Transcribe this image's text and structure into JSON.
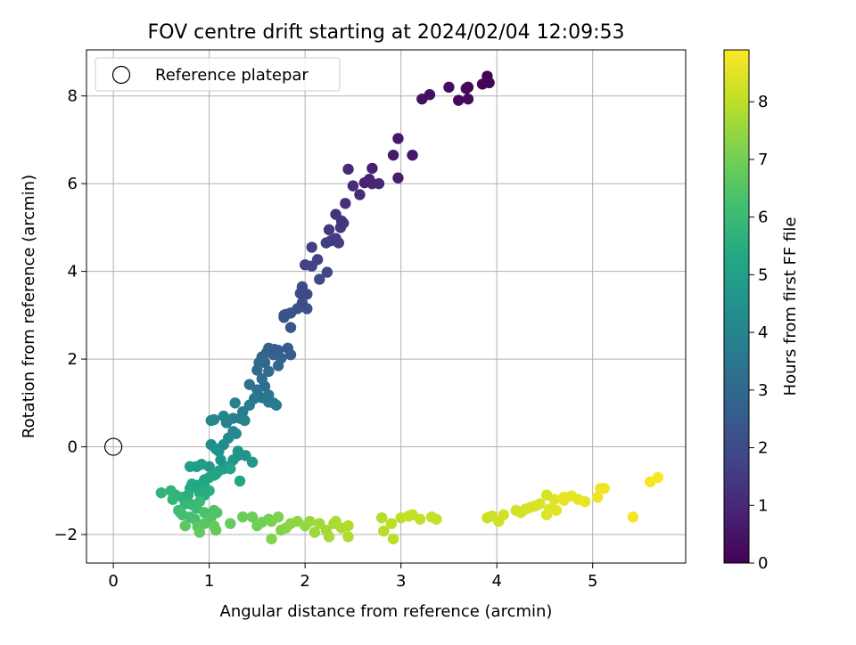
{
  "chart_data": {
    "type": "scatter",
    "title": "FOV centre drift starting at 2024/02/04 12:09:53",
    "xlabel": "Angular distance from reference (arcmin)",
    "ylabel": "Rotation from reference (arcmin)",
    "xlim": [
      -0.28,
      5.97
    ],
    "ylim": [
      -2.65,
      9.05
    ],
    "xticks": [
      0,
      1,
      2,
      3,
      4,
      5
    ],
    "yticks": [
      -2,
      0,
      2,
      4,
      6,
      8
    ],
    "grid": true,
    "legend": {
      "location": "upper-left",
      "entries": [
        "Reference platepar"
      ]
    },
    "reference_point": {
      "x": 0.0,
      "y": 0.0
    },
    "colorbar": {
      "label": "Hours from first FF file",
      "colormap": "viridis",
      "range": [
        0,
        8.9
      ],
      "ticks": [
        0,
        1,
        2,
        3,
        4,
        5,
        6,
        7,
        8
      ]
    },
    "points": [
      [
        3.9,
        8.45,
        0.05
      ],
      [
        3.92,
        8.3,
        0.1
      ],
      [
        3.85,
        8.27,
        0.12
      ],
      [
        3.7,
        8.2,
        0.15
      ],
      [
        3.68,
        8.17,
        0.18
      ],
      [
        3.6,
        7.9,
        0.22
      ],
      [
        3.7,
        7.93,
        0.25
      ],
      [
        3.5,
        8.2,
        0.3
      ],
      [
        3.3,
        8.03,
        0.35
      ],
      [
        3.22,
        7.93,
        0.4
      ],
      [
        3.12,
        6.65,
        0.55
      ],
      [
        2.97,
        7.03,
        0.6
      ],
      [
        2.92,
        6.65,
        0.65
      ],
      [
        2.97,
        6.13,
        0.7
      ],
      [
        2.7,
        6.35,
        0.8
      ],
      [
        2.67,
        6.1,
        0.85
      ],
      [
        2.62,
        6.02,
        0.9
      ],
      [
        2.7,
        6.0,
        0.95
      ],
      [
        2.77,
        6.0,
        1.0
      ],
      [
        2.45,
        6.33,
        1.05
      ],
      [
        2.5,
        5.95,
        1.1
      ],
      [
        2.57,
        5.75,
        1.15
      ],
      [
        2.42,
        5.55,
        1.2
      ],
      [
        2.32,
        5.3,
        1.3
      ],
      [
        2.38,
        5.15,
        1.35
      ],
      [
        2.37,
        5.0,
        1.4
      ],
      [
        2.25,
        4.95,
        1.45
      ],
      [
        2.27,
        4.7,
        1.5
      ],
      [
        2.32,
        4.75,
        1.52
      ],
      [
        2.35,
        4.65,
        1.55
      ],
      [
        2.22,
        4.65,
        1.6
      ],
      [
        2.07,
        4.55,
        1.65
      ],
      [
        2.13,
        4.27,
        1.7
      ],
      [
        2.0,
        4.15,
        1.75
      ],
      [
        2.07,
        4.12,
        1.8
      ],
      [
        2.23,
        3.98,
        1.85
      ],
      [
        2.15,
        3.82,
        1.9
      ],
      [
        1.97,
        3.65,
        1.95
      ],
      [
        1.95,
        3.5,
        2.0
      ],
      [
        2.02,
        3.48,
        2.05
      ],
      [
        1.97,
        3.28,
        2.1
      ],
      [
        2.02,
        3.15,
        2.15
      ],
      [
        1.92,
        3.15,
        2.2
      ],
      [
        1.85,
        3.05,
        2.25
      ],
      [
        1.8,
        3.02,
        2.3
      ],
      [
        1.78,
        2.95,
        2.35
      ],
      [
        1.85,
        2.72,
        2.4
      ],
      [
        1.82,
        2.25,
        2.55
      ],
      [
        1.85,
        2.1,
        2.6
      ],
      [
        1.72,
        2.2,
        2.65
      ],
      [
        1.67,
        2.1,
        2.7
      ],
      [
        1.62,
        2.25,
        2.75
      ],
      [
        1.6,
        2.15,
        2.8
      ],
      [
        1.55,
        2.05,
        2.85
      ],
      [
        1.75,
        2.02,
        2.9
      ],
      [
        1.72,
        1.85,
        2.95
      ],
      [
        1.58,
        1.92,
        3.0
      ],
      [
        1.52,
        1.92,
        3.05
      ],
      [
        1.5,
        1.75,
        3.1
      ],
      [
        1.62,
        1.72,
        3.15
      ],
      [
        1.55,
        1.55,
        3.2
      ],
      [
        1.58,
        1.38,
        3.25
      ],
      [
        1.42,
        1.42,
        3.3
      ],
      [
        1.5,
        1.3,
        3.35
      ],
      [
        1.55,
        1.12,
        3.4
      ],
      [
        1.47,
        1.1,
        3.45
      ],
      [
        1.62,
        1.18,
        3.5
      ],
      [
        1.62,
        1.02,
        3.55
      ],
      [
        1.67,
        1.0,
        3.6
      ],
      [
        1.7,
        0.95,
        3.65
      ],
      [
        1.42,
        0.95,
        3.7
      ],
      [
        1.35,
        0.8,
        3.75
      ],
      [
        1.32,
        0.65,
        3.8
      ],
      [
        1.25,
        0.65,
        3.85
      ],
      [
        1.37,
        0.6,
        3.9
      ],
      [
        1.27,
        1.0,
        3.95
      ],
      [
        1.15,
        0.7,
        4.0
      ],
      [
        1.05,
        0.62,
        4.05
      ],
      [
        1.02,
        0.6,
        4.1
      ],
      [
        1.25,
        0.35,
        4.15
      ],
      [
        1.28,
        0.3,
        4.2
      ],
      [
        1.2,
        0.2,
        4.25
      ],
      [
        1.15,
        0.05,
        4.3
      ],
      [
        1.02,
        0.05,
        4.35
      ],
      [
        1.07,
        -0.05,
        4.4
      ],
      [
        1.1,
        -0.1,
        4.45
      ],
      [
        1.3,
        -0.1,
        4.5
      ],
      [
        1.3,
        -0.2,
        4.55
      ],
      [
        1.38,
        -0.2,
        4.6
      ],
      [
        1.45,
        -0.35,
        4.65
      ],
      [
        1.25,
        -0.3,
        4.7
      ],
      [
        1.2,
        -0.45,
        4.75
      ],
      [
        1.15,
        -0.5,
        4.8
      ],
      [
        1.0,
        -0.45,
        4.85
      ],
      [
        0.92,
        -0.4,
        4.9
      ],
      [
        0.87,
        -0.45,
        4.92
      ],
      [
        0.8,
        -0.45,
        4.95
      ],
      [
        1.05,
        -0.65,
        5.0
      ],
      [
        0.95,
        -0.75,
        5.05
      ],
      [
        1.0,
        -0.7,
        5.1
      ],
      [
        1.07,
        -0.62,
        5.12
      ],
      [
        1.1,
        -0.55,
        5.15
      ],
      [
        1.22,
        -0.5,
        5.18
      ],
      [
        1.32,
        -0.78,
        5.2
      ],
      [
        0.95,
        -0.9,
        5.25
      ],
      [
        0.88,
        -0.88,
        5.3
      ],
      [
        0.82,
        -0.85,
        5.35
      ],
      [
        0.8,
        -0.95,
        5.4
      ],
      [
        0.9,
        -1.05,
        5.45
      ],
      [
        0.95,
        -1.1,
        5.5
      ],
      [
        1.0,
        -1.0,
        5.55
      ],
      [
        0.78,
        -1.1,
        5.6
      ],
      [
        0.72,
        -1.15,
        5.65
      ],
      [
        0.65,
        -1.1,
        5.7
      ],
      [
        0.6,
        -1.0,
        5.75
      ],
      [
        0.5,
        -1.05,
        5.8
      ],
      [
        0.62,
        -1.2,
        5.85
      ],
      [
        0.75,
        -1.3,
        5.9
      ],
      [
        0.82,
        -1.32,
        5.95
      ],
      [
        0.9,
        -1.25,
        6.0
      ],
      [
        0.87,
        -1.4,
        6.05
      ],
      [
        0.68,
        -1.45,
        6.1
      ],
      [
        0.7,
        -1.5,
        6.15
      ],
      [
        0.72,
        -1.55,
        6.2
      ],
      [
        0.8,
        -1.6,
        6.25
      ],
      [
        0.85,
        -1.65,
        6.3
      ],
      [
        0.95,
        -1.5,
        6.35
      ],
      [
        1.05,
        -1.45,
        6.4
      ],
      [
        1.08,
        -1.5,
        6.45
      ],
      [
        1.02,
        -1.6,
        6.5
      ],
      [
        0.95,
        -1.75,
        6.55
      ],
      [
        0.88,
        -1.82,
        6.6
      ],
      [
        0.75,
        -1.8,
        6.65
      ],
      [
        0.9,
        -1.95,
        6.7
      ],
      [
        1.05,
        -1.8,
        6.75
      ],
      [
        1.07,
        -1.9,
        6.78
      ],
      [
        1.22,
        -1.75,
        6.8
      ],
      [
        1.35,
        -1.6,
        6.85
      ],
      [
        1.45,
        -1.6,
        6.9
      ],
      [
        1.5,
        -1.8,
        6.95
      ],
      [
        1.55,
        -1.72,
        7.0
      ],
      [
        1.62,
        -1.65,
        7.05
      ],
      [
        1.65,
        -1.7,
        7.1
      ],
      [
        1.72,
        -1.6,
        7.15
      ],
      [
        1.75,
        -1.9,
        7.2
      ],
      [
        1.65,
        -2.1,
        7.25
      ],
      [
        1.8,
        -1.85,
        7.3
      ],
      [
        1.85,
        -1.75,
        7.35
      ],
      [
        1.92,
        -1.7,
        7.4
      ],
      [
        2.0,
        -1.8,
        7.45
      ],
      [
        2.05,
        -1.7,
        7.5
      ],
      [
        2.1,
        -1.95,
        7.55
      ],
      [
        2.15,
        -1.75,
        7.6
      ],
      [
        2.22,
        -1.9,
        7.65
      ],
      [
        2.25,
        -2.05,
        7.7
      ],
      [
        2.3,
        -1.75,
        7.72
      ],
      [
        2.32,
        -1.7,
        7.75
      ],
      [
        2.38,
        -1.85,
        7.8
      ],
      [
        2.45,
        -2.05,
        7.82
      ],
      [
        2.45,
        -1.8,
        7.85
      ],
      [
        2.8,
        -1.62,
        7.9
      ],
      [
        2.82,
        -1.92,
        7.95
      ],
      [
        2.9,
        -1.75,
        7.98
      ],
      [
        2.92,
        -2.1,
        8.0
      ],
      [
        3.0,
        -1.62,
        8.02
      ],
      [
        3.08,
        -1.58,
        8.05
      ],
      [
        3.12,
        -1.55,
        8.08
      ],
      [
        3.2,
        -1.65,
        8.1
      ],
      [
        3.32,
        -1.6,
        8.12
      ],
      [
        3.37,
        -1.65,
        8.15
      ],
      [
        3.9,
        -1.62,
        8.2
      ],
      [
        3.95,
        -1.58,
        8.22
      ],
      [
        4.02,
        -1.7,
        8.25
      ],
      [
        4.07,
        -1.55,
        8.28
      ],
      [
        4.2,
        -1.45,
        8.3
      ],
      [
        4.25,
        -1.5,
        8.32
      ],
      [
        4.3,
        -1.42,
        8.35
      ],
      [
        4.35,
        -1.38,
        8.38
      ],
      [
        4.4,
        -1.35,
        8.4
      ],
      [
        4.45,
        -1.3,
        8.42
      ],
      [
        4.52,
        -1.55,
        8.45
      ],
      [
        4.55,
        -1.42,
        8.48
      ],
      [
        4.6,
        -1.2,
        8.5
      ],
      [
        4.62,
        -1.45,
        8.52
      ],
      [
        4.7,
        -1.15,
        8.55
      ],
      [
        4.78,
        -1.12,
        8.58
      ],
      [
        4.85,
        -1.2,
        8.6
      ],
      [
        4.92,
        -1.25,
        8.62
      ],
      [
        5.05,
        -1.15,
        8.65
      ],
      [
        5.08,
        -0.95,
        8.7
      ],
      [
        5.12,
        -0.95,
        8.72
      ],
      [
        5.42,
        -1.6,
        8.75
      ],
      [
        5.6,
        -0.8,
        8.8
      ],
      [
        5.68,
        -0.7,
        8.85
      ],
      [
        4.52,
        -1.1,
        8.4
      ],
      [
        4.7,
        -1.22,
        8.57
      ],
      [
        1.12,
        -0.3,
        4.62
      ],
      [
        1.18,
        0.55,
        3.95
      ],
      [
        1.68,
        2.22,
        2.62
      ],
      [
        1.78,
        3.0,
        2.28
      ],
      [
        2.4,
        5.1,
        1.37
      ]
    ]
  }
}
